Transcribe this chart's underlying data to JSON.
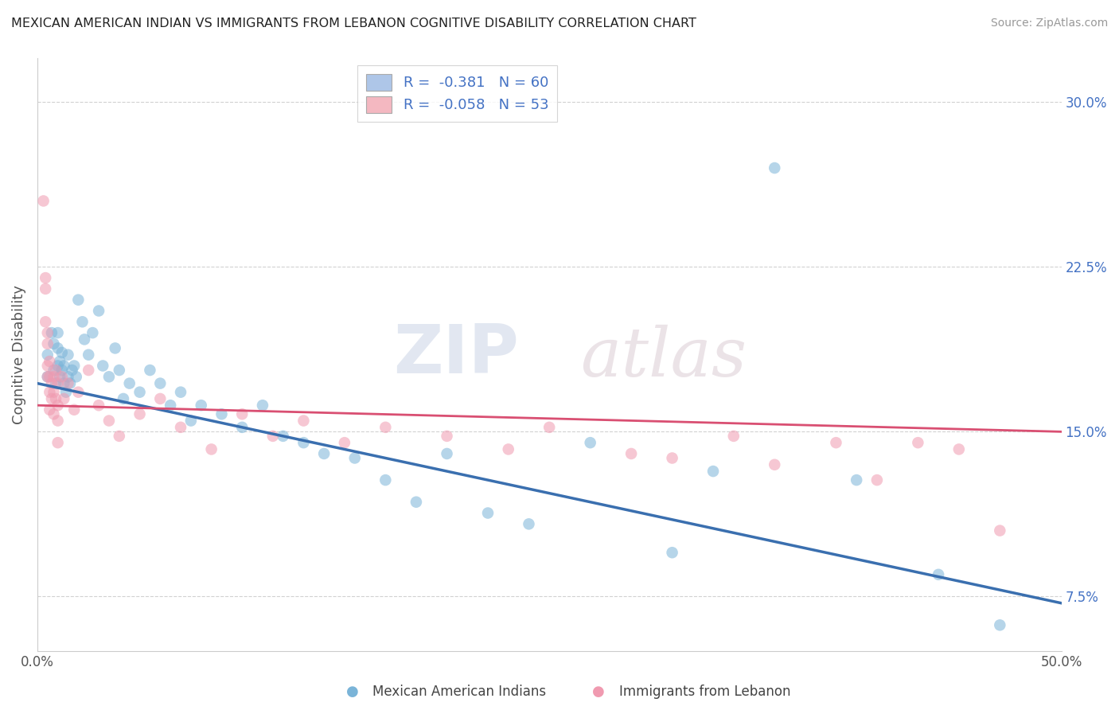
{
  "title": "MEXICAN AMERICAN INDIAN VS IMMIGRANTS FROM LEBANON COGNITIVE DISABILITY CORRELATION CHART",
  "source": "Source: ZipAtlas.com",
  "ylabel": "Cognitive Disability",
  "xlim": [
    0.0,
    0.5
  ],
  "ylim": [
    0.05,
    0.32
  ],
  "yticks": [
    0.075,
    0.15,
    0.225,
    0.3
  ],
  "yticklabels": [
    "7.5%",
    "15.0%",
    "22.5%",
    "30.0%"
  ],
  "legend_entries": [
    {
      "label": "R =  -0.381   N = 60",
      "color": "#aec6e8"
    },
    {
      "label": "R =  -0.058   N = 53",
      "color": "#f4b8c1"
    }
  ],
  "blue_color": "#7ab4d8",
  "pink_color": "#f09ab0",
  "blue_line_color": "#3a6faf",
  "pink_line_color": "#d94f72",
  "watermark_zip": "ZIP",
  "watermark_atlas": "atlas",
  "blue_line_y0": 0.172,
  "blue_line_y1": 0.072,
  "pink_line_y0": 0.162,
  "pink_line_y1": 0.15,
  "blue_scatter_x": [
    0.005,
    0.005,
    0.007,
    0.008,
    0.008,
    0.009,
    0.01,
    0.01,
    0.01,
    0.011,
    0.011,
    0.012,
    0.012,
    0.013,
    0.013,
    0.014,
    0.015,
    0.015,
    0.016,
    0.017,
    0.018,
    0.019,
    0.02,
    0.022,
    0.023,
    0.025,
    0.027,
    0.03,
    0.032,
    0.035,
    0.038,
    0.04,
    0.042,
    0.045,
    0.05,
    0.055,
    0.06,
    0.065,
    0.07,
    0.075,
    0.08,
    0.09,
    0.1,
    0.11,
    0.12,
    0.13,
    0.14,
    0.155,
    0.17,
    0.185,
    0.2,
    0.22,
    0.24,
    0.27,
    0.31,
    0.33,
    0.36,
    0.4,
    0.44,
    0.47
  ],
  "blue_scatter_y": [
    0.175,
    0.185,
    0.195,
    0.178,
    0.19,
    0.172,
    0.18,
    0.188,
    0.195,
    0.175,
    0.182,
    0.178,
    0.186,
    0.172,
    0.18,
    0.168,
    0.175,
    0.185,
    0.172,
    0.178,
    0.18,
    0.175,
    0.21,
    0.2,
    0.192,
    0.185,
    0.195,
    0.205,
    0.18,
    0.175,
    0.188,
    0.178,
    0.165,
    0.172,
    0.168,
    0.178,
    0.172,
    0.162,
    0.168,
    0.155,
    0.162,
    0.158,
    0.152,
    0.162,
    0.148,
    0.145,
    0.14,
    0.138,
    0.128,
    0.118,
    0.14,
    0.113,
    0.108,
    0.145,
    0.095,
    0.132,
    0.27,
    0.128,
    0.085,
    0.062
  ],
  "pink_scatter_x": [
    0.003,
    0.004,
    0.004,
    0.004,
    0.005,
    0.005,
    0.005,
    0.005,
    0.006,
    0.006,
    0.006,
    0.006,
    0.007,
    0.007,
    0.008,
    0.008,
    0.008,
    0.009,
    0.009,
    0.01,
    0.01,
    0.01,
    0.01,
    0.012,
    0.013,
    0.015,
    0.018,
    0.02,
    0.025,
    0.03,
    0.035,
    0.04,
    0.05,
    0.06,
    0.07,
    0.085,
    0.1,
    0.115,
    0.13,
    0.15,
    0.17,
    0.2,
    0.23,
    0.25,
    0.29,
    0.31,
    0.34,
    0.36,
    0.39,
    0.41,
    0.43,
    0.45,
    0.47
  ],
  "pink_scatter_y": [
    0.255,
    0.22,
    0.215,
    0.2,
    0.195,
    0.19,
    0.18,
    0.175,
    0.168,
    0.175,
    0.182,
    0.16,
    0.172,
    0.165,
    0.175,
    0.168,
    0.158,
    0.178,
    0.165,
    0.172,
    0.162,
    0.155,
    0.145,
    0.175,
    0.165,
    0.172,
    0.16,
    0.168,
    0.178,
    0.162,
    0.155,
    0.148,
    0.158,
    0.165,
    0.152,
    0.142,
    0.158,
    0.148,
    0.155,
    0.145,
    0.152,
    0.148,
    0.142,
    0.152,
    0.14,
    0.138,
    0.148,
    0.135,
    0.145,
    0.128,
    0.145,
    0.142,
    0.105
  ]
}
